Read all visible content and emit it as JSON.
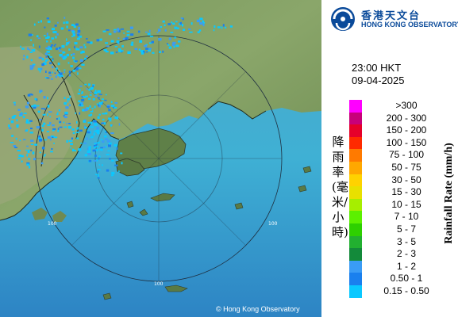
{
  "header": {
    "org_name_cn": "香港天文台",
    "org_name_en": "HONG KONG OBSERVATORY"
  },
  "time": "23:00 HKT",
  "date": "09-04-2025",
  "legend": {
    "unit_en": "Rainfall Rate (mm/h)",
    "unit_cn": "降雨率(毫米/小時)",
    "items": [
      {
        "label": ">300",
        "color": "#ff00ff"
      },
      {
        "label": "200 - 300",
        "color": "#c8007a"
      },
      {
        "label": "150 - 200",
        "color": "#e6002a"
      },
      {
        "label": "100 - 150",
        "color": "#ff2a00"
      },
      {
        "label": "75 - 100",
        "color": "#ff7a00"
      },
      {
        "label": "50 - 75",
        "color": "#ffa800"
      },
      {
        "label": "30 - 50",
        "color": "#ffd200"
      },
      {
        "label": "15 - 30",
        "color": "#e8e000"
      },
      {
        "label": "10 - 15",
        "color": "#a6ee00"
      },
      {
        "label": "7 - 10",
        "color": "#5cf000"
      },
      {
        "label": "5 - 7",
        "color": "#2ed000"
      },
      {
        "label": "3 - 5",
        "color": "#22b030"
      },
      {
        "label": "2 - 3",
        "color": "#138a3a"
      },
      {
        "label": "1 - 2",
        "color": "#3a9cf5"
      },
      {
        "label": "0.50 - 1",
        "color": "#1a80ee"
      },
      {
        "label": "0.15 - 0.50",
        "color": "#0ac8ff"
      }
    ]
  },
  "map": {
    "range_rings": [
      {
        "label": "100"
      },
      {
        "label": "100"
      },
      {
        "label": "100"
      }
    ],
    "copyright": "© Hong Kong Observatory"
  }
}
